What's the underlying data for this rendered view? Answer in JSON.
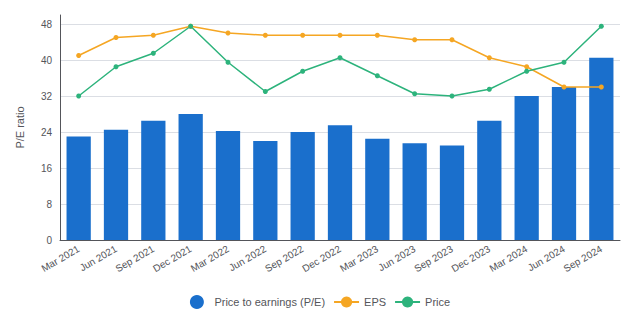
{
  "chart_data": {
    "type": "bar",
    "categories": [
      "Mar 2021",
      "Jun 2021",
      "Sep 2021",
      "Dec 2021",
      "Mar 2022",
      "Jun 2022",
      "Sep 2022",
      "Dec 2022",
      "Mar 2023",
      "Jun 2023",
      "Sep 2023",
      "Dec 2023",
      "Mar 2024",
      "Jun 2024",
      "Sep 2024"
    ],
    "series": [
      {
        "name": "Price to earnings (P/E)",
        "type": "bar",
        "color": "#1a6fcc",
        "values": [
          23.0,
          24.5,
          26.5,
          28.0,
          24.2,
          22.0,
          24.0,
          25.5,
          22.5,
          21.5,
          21.0,
          26.5,
          32.0,
          34.0,
          40.5
        ]
      },
      {
        "name": "EPS",
        "type": "line",
        "color": "#f5a623",
        "marker": "circle",
        "values": [
          41.0,
          45.0,
          45.5,
          47.5,
          46.0,
          45.5,
          45.5,
          45.5,
          45.5,
          44.5,
          44.5,
          40.5,
          38.5,
          34.0,
          34.0
        ]
      },
      {
        "name": "Price",
        "type": "line",
        "color": "#2db37c",
        "marker": "circle",
        "values": [
          32.0,
          38.5,
          41.5,
          47.5,
          39.5,
          33.0,
          37.5,
          40.5,
          36.5,
          32.5,
          32.0,
          33.5,
          37.5,
          39.5,
          47.5
        ]
      }
    ],
    "ylabel": "P/E ratio",
    "ylim": [
      0,
      50
    ],
    "yticks": [
      0,
      8,
      16,
      24,
      32,
      40,
      48
    ],
    "grid": true,
    "legend": "bottom"
  }
}
